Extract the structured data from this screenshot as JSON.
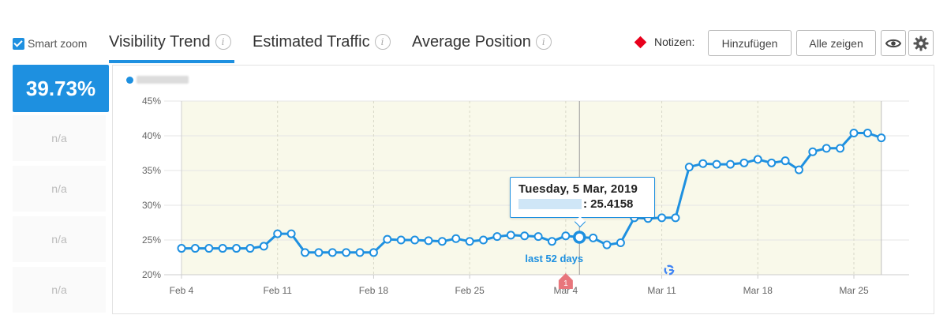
{
  "header": {
    "smart_zoom": {
      "label": "Smart zoom",
      "checked": true
    },
    "tabs": [
      {
        "label": "Visibility Trend",
        "active": true
      },
      {
        "label": "Estimated Traffic",
        "active": false
      },
      {
        "label": "Average Position",
        "active": false
      }
    ],
    "info_icon": "i",
    "notes_label": "Notizen:",
    "add_button": "Hinzufügen",
    "show_all_button": "Alle zeigen",
    "eye_icon": "eye-icon",
    "settings_icon": "gear-icon"
  },
  "metrics": {
    "primary_value": "39.73%",
    "others": [
      "n/a",
      "n/a",
      "n/a",
      "n/a"
    ]
  },
  "colors": {
    "accent": "#1e90e0",
    "plot_bg": "#f9f9ea",
    "note_marker": "#e8001c",
    "grid": "#e5e5e5"
  },
  "tooltip": {
    "date": "Tuesday, 5 Mar, 2019",
    "value": ": 25.4158"
  },
  "annotation_text": "last 52 days",
  "note_marker_label": "1",
  "chart_data": {
    "type": "line",
    "title": "",
    "xlabel": "",
    "ylabel": "",
    "ylim": [
      20,
      45
    ],
    "y_ticks": [
      "20%",
      "25%",
      "30%",
      "35%",
      "40%",
      "45%"
    ],
    "x_ticks": [
      "Feb 4",
      "Feb 11",
      "Feb 18",
      "Feb 25",
      "Mar 4",
      "Mar 11",
      "Mar 18",
      "Mar 25"
    ],
    "x": [
      "2019-02-04",
      "2019-02-05",
      "2019-02-06",
      "2019-02-07",
      "2019-02-08",
      "2019-02-09",
      "2019-02-10",
      "2019-02-11",
      "2019-02-12",
      "2019-02-13",
      "2019-02-14",
      "2019-02-15",
      "2019-02-16",
      "2019-02-17",
      "2019-02-18",
      "2019-02-19",
      "2019-02-20",
      "2019-02-21",
      "2019-02-22",
      "2019-02-23",
      "2019-02-24",
      "2019-02-25",
      "2019-02-26",
      "2019-02-27",
      "2019-02-28",
      "2019-03-01",
      "2019-03-02",
      "2019-03-03",
      "2019-03-04",
      "2019-03-05",
      "2019-03-06",
      "2019-03-07",
      "2019-03-08",
      "2019-03-09",
      "2019-03-10",
      "2019-03-11",
      "2019-03-12",
      "2019-03-13",
      "2019-03-14",
      "2019-03-15",
      "2019-03-16",
      "2019-03-17",
      "2019-03-18",
      "2019-03-19",
      "2019-03-20",
      "2019-03-21",
      "2019-03-22",
      "2019-03-23",
      "2019-03-24",
      "2019-03-25",
      "2019-03-26",
      "2019-03-27"
    ],
    "series": [
      {
        "values": [
          23.8,
          23.8,
          23.8,
          23.8,
          23.8,
          23.8,
          24.1,
          25.9,
          25.9,
          23.2,
          23.2,
          23.2,
          23.2,
          23.2,
          23.2,
          25.1,
          25.0,
          25.0,
          24.9,
          24.8,
          25.2,
          24.8,
          25.0,
          25.5,
          25.7,
          25.6,
          25.5,
          24.8,
          25.6,
          25.4,
          25.3,
          24.3,
          24.6,
          28.2,
          28.1,
          28.2,
          28.2,
          35.5,
          36.0,
          35.9,
          35.9,
          36.1,
          36.6,
          36.1,
          36.4,
          35.1,
          37.7,
          38.2,
          38.2,
          40.4,
          40.4,
          39.7
        ]
      }
    ],
    "highlight": {
      "x": "2019-03-05",
      "y": 25.4158
    },
    "range_start": "2019-02-04",
    "range_end": "2019-03-27",
    "note_date": "2019-03-04",
    "google_marker_date": "2019-03-12"
  }
}
